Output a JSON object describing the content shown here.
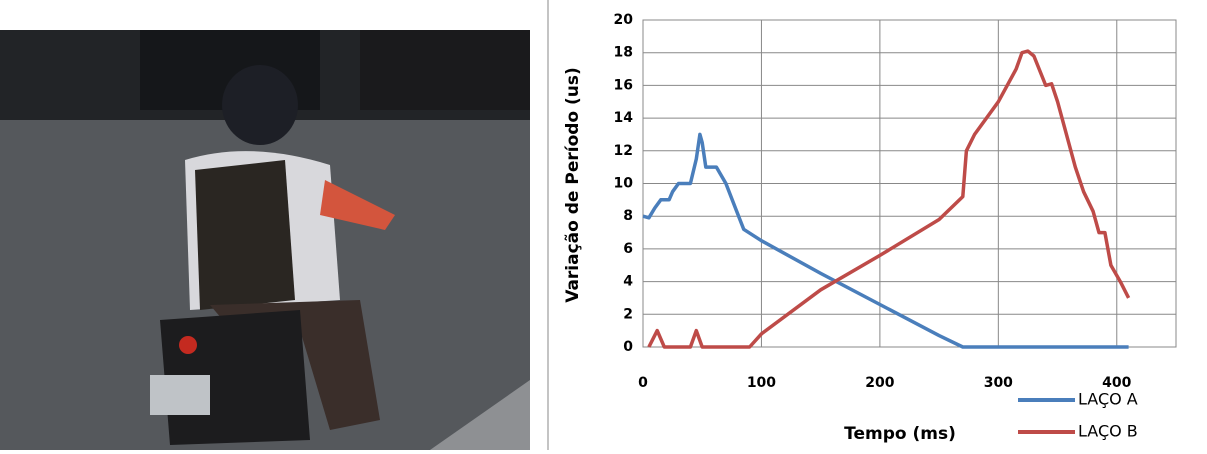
{
  "chart_data": {
    "type": "line",
    "xlabel": "Tempo (ms)",
    "ylabel": "Variação de Período (us)",
    "xlim": [
      0,
      450
    ],
    "ylim": [
      0,
      20
    ],
    "xticks": [
      0,
      100,
      200,
      300,
      400
    ],
    "yticks": [
      0,
      2,
      4,
      6,
      8,
      10,
      12,
      14,
      16,
      18,
      20
    ],
    "grid": true,
    "legend": "lower right",
    "series": [
      {
        "name": "LAÇO A",
        "color": "#4a7ebb",
        "x": [
          0,
          5,
          10,
          15,
          22,
          25,
          30,
          40,
          45,
          48,
          50,
          53,
          58,
          62,
          70,
          78,
          85,
          100,
          150,
          200,
          250,
          270,
          300,
          410
        ],
        "values": [
          8,
          7.9,
          8.5,
          9,
          9,
          9.5,
          10,
          10,
          11.5,
          13,
          12.5,
          11,
          11,
          11,
          10,
          8.5,
          7.2,
          6.5,
          4.5,
          2.6,
          0.7,
          0,
          0,
          0
        ]
      },
      {
        "name": "LAÇO B",
        "color": "#be4b48",
        "x": [
          5,
          12,
          18,
          40,
          45,
          50,
          90,
          100,
          150,
          200,
          250,
          270,
          273,
          280,
          300,
          315,
          320,
          325,
          330,
          340,
          345,
          350,
          365,
          372,
          380,
          385,
          390,
          395,
          403,
          410
        ],
        "values": [
          0,
          1,
          0,
          0,
          1,
          0,
          0,
          0.8,
          3.5,
          5.6,
          7.8,
          9.2,
          12,
          13,
          15,
          17,
          18,
          18.1,
          17.8,
          16,
          16.1,
          15,
          11,
          9.5,
          8.3,
          7,
          7,
          5,
          4,
          3
        ]
      }
    ]
  }
}
